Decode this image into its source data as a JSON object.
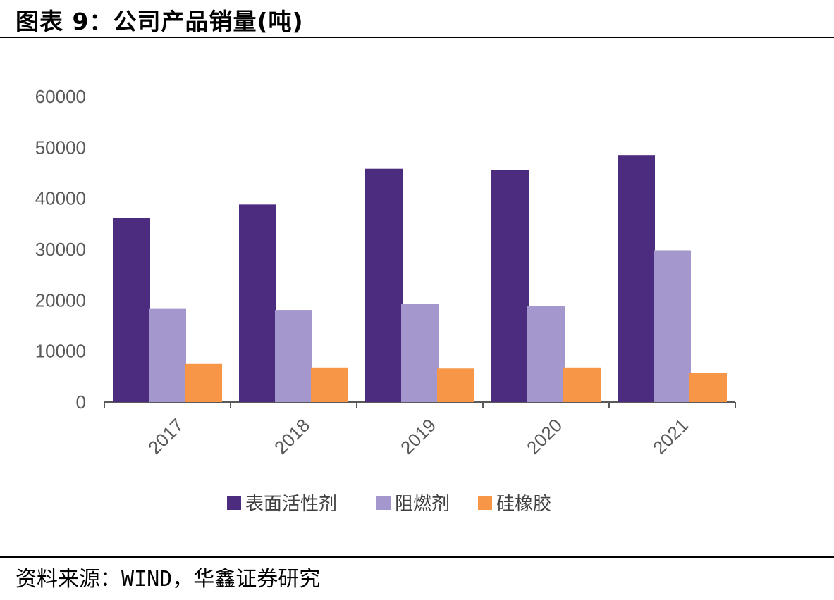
{
  "header": {
    "title": "图表 9：公司产品销量(吨)"
  },
  "footer": {
    "source": "资料来源：WIND，华鑫证券研究"
  },
  "chart_data": {
    "type": "bar",
    "title": "",
    "xlabel": "",
    "ylabel": "",
    "categories": [
      "2017",
      "2018",
      "2019",
      "2020",
      "2021"
    ],
    "ylim": [
      0,
      60000
    ],
    "yticks": [
      "0",
      "10000",
      "20000",
      "30000",
      "40000",
      "50000",
      "60000"
    ],
    "grid": false,
    "legend": "bottom",
    "series": [
      {
        "name": "表面活性剂",
        "color": "#4b2c7f",
        "values": [
          36200,
          38800,
          45800,
          45500,
          48500
        ]
      },
      {
        "name": "阻燃剂",
        "color": "#a497cd",
        "values": [
          18300,
          18100,
          19300,
          18800,
          29800
        ]
      },
      {
        "name": "硅橡胶",
        "color": "#f79646",
        "values": [
          7500,
          6800,
          6600,
          6800,
          5800
        ]
      }
    ]
  }
}
